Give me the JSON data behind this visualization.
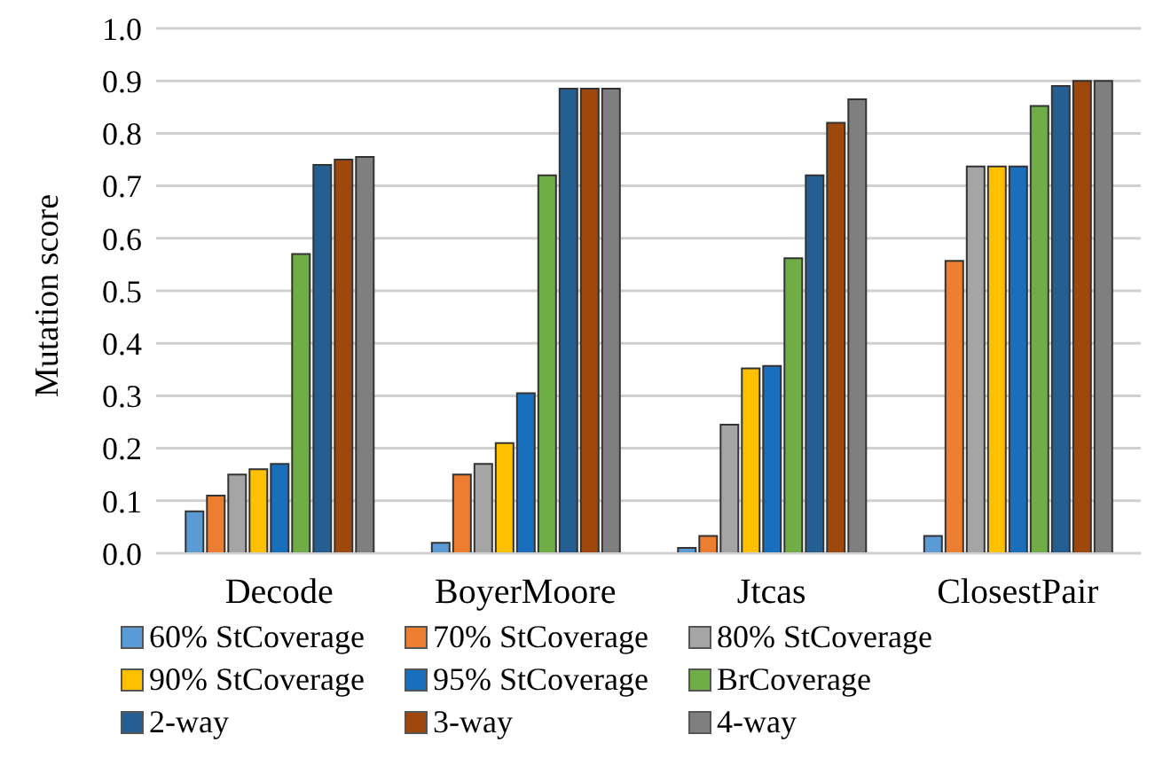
{
  "chart_data": {
    "type": "bar",
    "ylabel": "Mutation score",
    "categories": [
      "Decode",
      "BoyerMoore",
      "Jtcas",
      "ClosestPair"
    ],
    "series": [
      {
        "name": "60% StCoverage",
        "color": "#5b9bd5",
        "values": [
          0.08,
          0.02,
          0.01,
          0.033
        ]
      },
      {
        "name": "70% StCoverage",
        "color": "#ed7d31",
        "values": [
          0.11,
          0.15,
          0.033,
          0.557
        ]
      },
      {
        "name": "80% StCoverage",
        "color": "#a5a5a5",
        "values": [
          0.15,
          0.17,
          0.245,
          0.737
        ]
      },
      {
        "name": "90% StCoverage",
        "color": "#ffc000",
        "values": [
          0.16,
          0.21,
          0.352,
          0.737
        ]
      },
      {
        "name": "95% StCoverage",
        "color": "#1a6fbd",
        "values": [
          0.17,
          0.305,
          0.357,
          0.737
        ]
      },
      {
        "name": "BrCoverage",
        "color": "#70ad47",
        "values": [
          0.57,
          0.72,
          0.562,
          0.852
        ]
      },
      {
        "name": "2-way",
        "color": "#255e91",
        "values": [
          0.74,
          0.885,
          0.72,
          0.89
        ]
      },
      {
        "name": "3-way",
        "color": "#9e480e",
        "values": [
          0.75,
          0.885,
          0.82,
          0.9
        ]
      },
      {
        "name": "4-way",
        "color": "#7f7f7f",
        "values": [
          0.755,
          0.885,
          0.865,
          0.9
        ]
      }
    ],
    "ylim": [
      0,
      1
    ],
    "yticks": [
      {
        "value": 0,
        "label": "0.0"
      },
      {
        "value": 0.1,
        "label": "0.1"
      },
      {
        "value": 0.2,
        "label": "0.2"
      },
      {
        "value": 0.3,
        "label": "0.3"
      },
      {
        "value": 0.4,
        "label": "0.4"
      },
      {
        "value": 0.5,
        "label": "0.5"
      },
      {
        "value": 0.6,
        "label": "0.6"
      },
      {
        "value": 0.7,
        "label": "0.7"
      },
      {
        "value": 0.8,
        "label": "0.8"
      },
      {
        "value": 0.9,
        "label": "0.9"
      },
      {
        "value": 1,
        "label": "1.0"
      }
    ],
    "grid": "y",
    "legend": "bottom"
  }
}
